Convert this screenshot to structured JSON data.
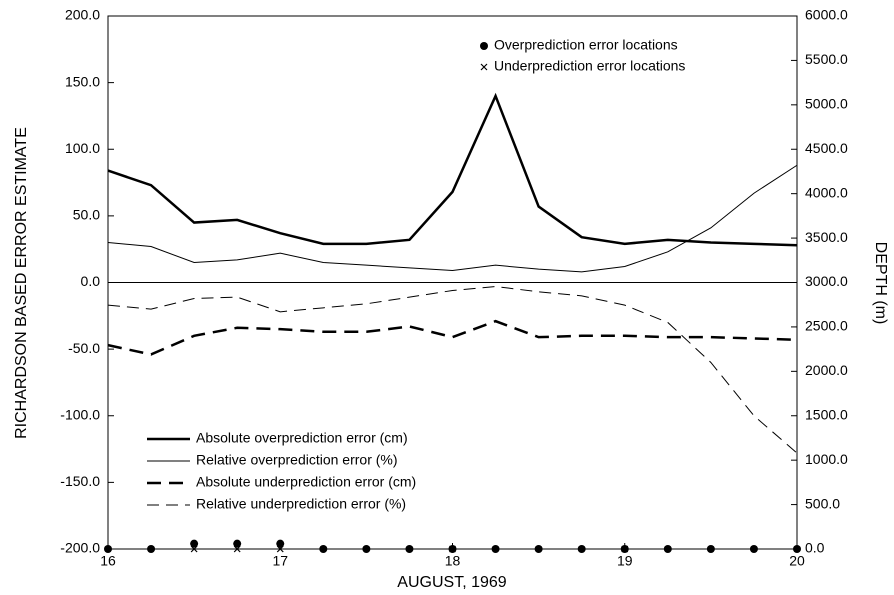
{
  "chart_data": {
    "type": "line",
    "xlabel": "AUGUST, 1969",
    "ylabel": "RICHARDSON BASED ERROR ESTIMATE",
    "y2label": "DEPTH (m)",
    "x": [
      16,
      16.25,
      16.5,
      16.75,
      17,
      17.25,
      17.5,
      17.75,
      18,
      18.25,
      18.5,
      18.75,
      19,
      19.25,
      19.5,
      19.75,
      20
    ],
    "xlim": [
      16,
      20
    ],
    "xticks": [
      16,
      17,
      18,
      19,
      20
    ],
    "ylim": [
      -200,
      200
    ],
    "yticks": [
      {
        "value": -200,
        "label": "-200.0"
      },
      {
        "value": -150,
        "label": "-150.0"
      },
      {
        "value": -100,
        "label": "-100.0"
      },
      {
        "value": -50,
        "label": "-50.0"
      },
      {
        "value": 0,
        "label": "0.0"
      },
      {
        "value": 50,
        "label": "50.0"
      },
      {
        "value": 100,
        "label": "100.0"
      },
      {
        "value": 150,
        "label": "150.0"
      },
      {
        "value": 200,
        "label": "200.0"
      }
    ],
    "y2lim": [
      0,
      6000
    ],
    "y2ticks": [
      {
        "value": 0,
        "label": "0.0"
      },
      {
        "value": 500,
        "label": "500.0"
      },
      {
        "value": 1000,
        "label": "1000.0"
      },
      {
        "value": 1500,
        "label": "1500.0"
      },
      {
        "value": 2000,
        "label": "2000.0"
      },
      {
        "value": 2500,
        "label": "2500.0"
      },
      {
        "value": 3000,
        "label": "3000.0"
      },
      {
        "value": 3500,
        "label": "3500.0"
      },
      {
        "value": 4000,
        "label": "4000.0"
      },
      {
        "value": 4500,
        "label": "4500.0"
      },
      {
        "value": 5000,
        "label": "5000.0"
      },
      {
        "value": 5500,
        "label": "5500.0"
      },
      {
        "value": 6000,
        "label": "6000.0"
      }
    ],
    "zero_line": true,
    "series": [
      {
        "name": "Absolute overprediction error (cm)",
        "color": "#000000",
        "width": 2.5,
        "dash": "solid",
        "values": [
          84,
          73,
          45,
          47,
          37,
          29,
          29,
          32,
          68,
          140,
          57,
          34,
          29,
          32,
          30,
          29,
          28
        ]
      },
      {
        "name": "Relative overprediction error (%)",
        "color": "#000000",
        "width": 1,
        "dash": "solid",
        "values": [
          30,
          27,
          15,
          17,
          22,
          15,
          13,
          11,
          9,
          13,
          10,
          8,
          12,
          23,
          41,
          67,
          88
        ]
      },
      {
        "name": "Absolute underprediction error (cm)",
        "color": "#000000",
        "width": 2.5,
        "dash": "dashed",
        "values": [
          -47,
          -54,
          -40,
          -34,
          -35,
          -37,
          -37,
          -33,
          -41,
          -29,
          -41,
          -40,
          -40,
          -41,
          -41,
          -42,
          -43
        ]
      },
      {
        "name": "Relative underprediction error (%)",
        "color": "#000000",
        "width": 1,
        "dash": "dashed",
        "values": [
          -17,
          -20,
          -12,
          -11,
          -22,
          -19,
          -16,
          -11,
          -6,
          -3,
          -7,
          -10,
          -17,
          -30,
          -60,
          -100,
          -128
        ]
      }
    ],
    "markers": [
      {
        "name": "Overprediction error locations",
        "symbol": "dot",
        "x": [
          16,
          16.25,
          16.5,
          16.75,
          17,
          17.25,
          17.5,
          17.75,
          18,
          18.25,
          18.5,
          18.75,
          19,
          19.25,
          19.5,
          19.75,
          20
        ],
        "values": [
          -200,
          -200,
          -196,
          -196,
          -196,
          -200,
          -200,
          -200,
          -200,
          -200,
          -200,
          -200,
          -200,
          -200,
          -200,
          -200,
          -200
        ]
      },
      {
        "name": "Underprediction error locations",
        "symbol": "x",
        "x": [
          16.5,
          16.75,
          17,
          18,
          19
        ],
        "values": [
          -200,
          -200,
          -200,
          -200,
          -200
        ]
      }
    ]
  }
}
